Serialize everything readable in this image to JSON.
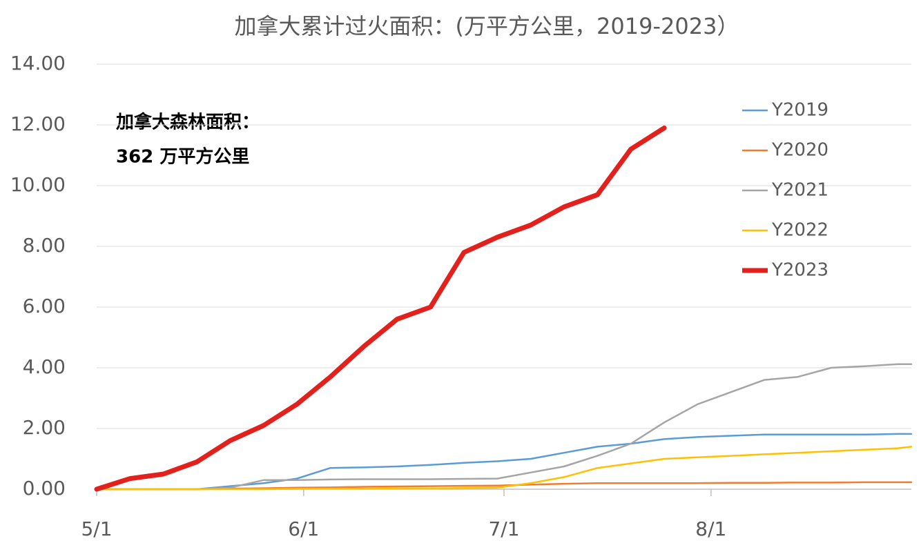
{
  "chart_data": {
    "type": "line",
    "title": "加拿大累计过火面积：(万平方公里，2019-2023）",
    "annotation": [
      "加拿大森林面积：",
      "362 万平方公里"
    ],
    "x": [
      0,
      5,
      10,
      15,
      20,
      25,
      30,
      35,
      40,
      45,
      50,
      55,
      60,
      65,
      70,
      75,
      80,
      85,
      90,
      95,
      100,
      105,
      110,
      115,
      120,
      122
    ],
    "xlim": [
      0,
      122
    ],
    "xticks": [
      {
        "value": 0,
        "label": "5/1"
      },
      {
        "value": 31,
        "label": "6/1"
      },
      {
        "value": 61,
        "label": "7/1"
      },
      {
        "value": 92,
        "label": "8/1"
      }
    ],
    "ylim": [
      0,
      14
    ],
    "yticks": [
      {
        "value": 0,
        "label": "0.00"
      },
      {
        "value": 2,
        "label": "2.00"
      },
      {
        "value": 4,
        "label": "4.00"
      },
      {
        "value": 6,
        "label": "6.00"
      },
      {
        "value": 8,
        "label": "8.00"
      },
      {
        "value": 10,
        "label": "10.00"
      },
      {
        "value": 12,
        "label": "12.00"
      },
      {
        "value": 14,
        "label": "14.00"
      }
    ],
    "grid": true,
    "legend": "right",
    "series": [
      {
        "name": "Y2019",
        "color": "#5b9bd5",
        "values": [
          0,
          0,
          0,
          0,
          0.1,
          0.2,
          0.35,
          0.7,
          0.72,
          0.75,
          0.8,
          0.87,
          0.92,
          1.0,
          1.2,
          1.4,
          1.5,
          1.65,
          1.72,
          1.76,
          1.8,
          1.8,
          1.8,
          1.8,
          1.82,
          1.82
        ]
      },
      {
        "name": "Y2020",
        "color": "#ed7d31",
        "values": [
          0,
          0,
          0,
          0,
          0.02,
          0.03,
          0.05,
          0.06,
          0.08,
          0.09,
          0.1,
          0.11,
          0.12,
          0.15,
          0.18,
          0.2,
          0.2,
          0.2,
          0.2,
          0.21,
          0.21,
          0.22,
          0.22,
          0.23,
          0.23,
          0.23
        ]
      },
      {
        "name": "Y2021",
        "color": "#a5a5a5",
        "values": [
          0,
          0,
          0,
          0,
          0.05,
          0.3,
          0.3,
          0.32,
          0.33,
          0.33,
          0.33,
          0.34,
          0.35,
          0.55,
          0.75,
          1.1,
          1.5,
          2.2,
          2.8,
          3.2,
          3.6,
          3.7,
          4.0,
          4.05,
          4.12,
          4.12
        ]
      },
      {
        "name": "Y2022",
        "color": "#ffc000",
        "values": [
          0,
          0,
          0,
          0,
          0,
          0,
          0.01,
          0.02,
          0.02,
          0.03,
          0.03,
          0.04,
          0.05,
          0.2,
          0.4,
          0.7,
          0.85,
          1.0,
          1.05,
          1.1,
          1.15,
          1.2,
          1.25,
          1.3,
          1.35,
          1.4
        ]
      },
      {
        "name": "Y2023",
        "color": "#e3211c",
        "values": [
          0,
          0.35,
          0.5,
          0.9,
          1.6,
          2.1,
          2.8,
          3.7,
          4.7,
          5.6,
          6.0,
          7.8,
          8.3,
          8.7,
          9.3,
          9.7,
          11.2,
          11.9,
          null,
          null,
          null,
          null,
          null,
          null,
          null,
          null
        ]
      }
    ]
  }
}
